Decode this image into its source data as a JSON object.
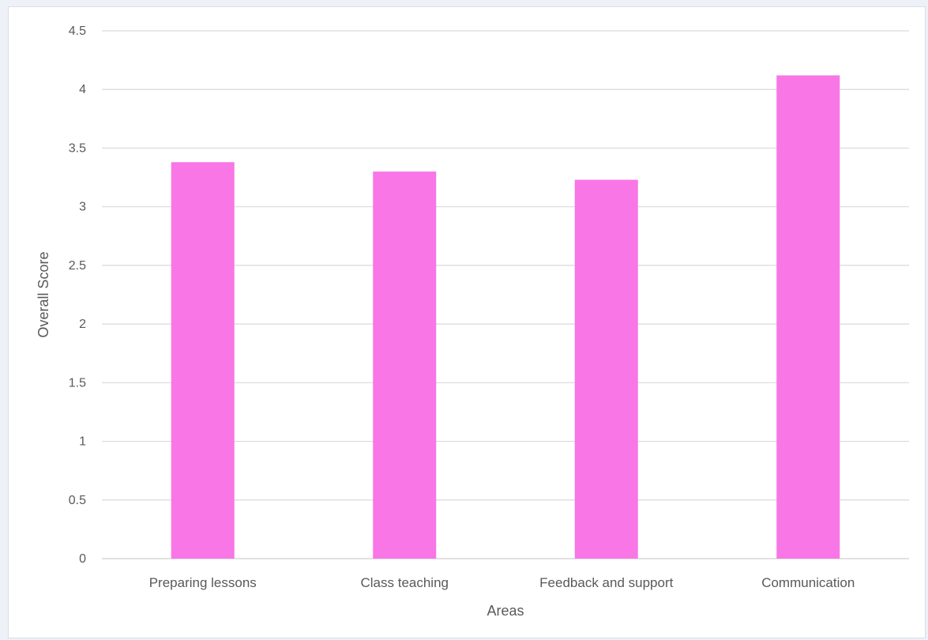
{
  "chart_data": {
    "type": "bar",
    "categories": [
      "Preparing lessons",
      "Class teaching",
      "Feedback and support",
      "Communication"
    ],
    "values": [
      3.38,
      3.3,
      3.23,
      4.12
    ],
    "title": "",
    "xlabel": "Areas",
    "ylabel": "Overall Score",
    "ylim": [
      0,
      4.5
    ],
    "yticks": [
      "0",
      "0.5",
      "1",
      "1.5",
      "2",
      "2.5",
      "3",
      "3.5",
      "4",
      "4.5"
    ],
    "grid": true,
    "legend": "none",
    "bar_color": "#f876e6",
    "grid_color": "#d9d9d9",
    "text_color": "#595959"
  }
}
